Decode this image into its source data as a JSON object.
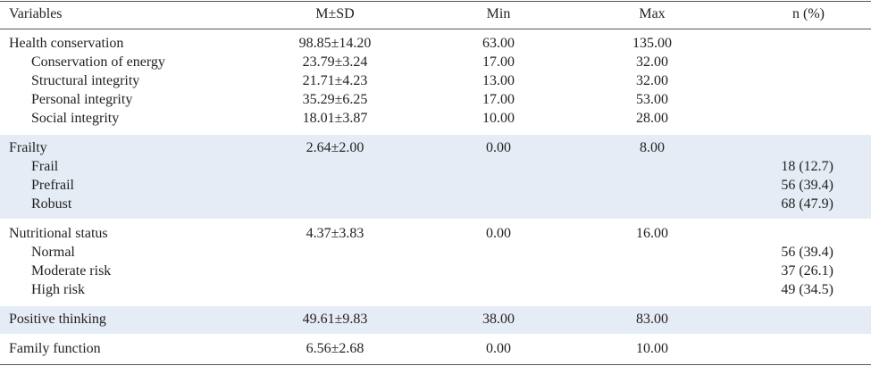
{
  "table": {
    "header": [
      "Variables",
      "M±SD",
      "Min",
      "Max",
      "n (%)"
    ],
    "groups": [
      {
        "rows": [
          {
            "label": "Health conservation",
            "msd": "98.85±14.20",
            "min": "63.00",
            "max": "135.00"
          },
          {
            "label": "Conservation of energy",
            "msd": "23.79±3.24",
            "min": "17.00",
            "max": "32.00",
            "sub": true
          },
          {
            "label": "Structural integrity",
            "msd": "21.71±4.23",
            "min": "13.00",
            "max": "32.00",
            "sub": true
          },
          {
            "label": "Personal integrity",
            "msd": "35.29±6.25",
            "min": "17.00",
            "max": "53.00",
            "sub": true
          },
          {
            "label": "Social integrity",
            "msd": "18.01±3.87",
            "min": "10.00",
            "max": "28.00",
            "sub": true
          }
        ]
      },
      {
        "shaded": true,
        "rows": [
          {
            "label": "Frailty",
            "msd": "2.64±2.00",
            "min": "0.00",
            "max": "8.00"
          },
          {
            "label": "Frail",
            "n": "18 (12.7)",
            "sub": true
          },
          {
            "label": "Prefrail",
            "n": "56 (39.4)",
            "sub": true
          },
          {
            "label": "Robust",
            "n": "68 (47.9)",
            "sub": true
          }
        ]
      },
      {
        "rows": [
          {
            "label": "Nutritional status",
            "msd": "4.37±3.83",
            "min": "0.00",
            "max": "16.00"
          },
          {
            "label": "Normal",
            "n": "56 (39.4)",
            "sub": true
          },
          {
            "label": "Moderate risk",
            "n": "37 (26.1)",
            "sub": true
          },
          {
            "label": "High risk",
            "n": "49 (34.5)",
            "sub": true
          }
        ]
      },
      {
        "shaded": true,
        "rows": [
          {
            "label": "Positive thinking",
            "msd": "49.61±9.83",
            "min": "38.00",
            "max": "83.00"
          }
        ]
      },
      {
        "rows": [
          {
            "label": "Family function",
            "msd": "6.56±2.68",
            "min": "0.00",
            "max": "10.00"
          }
        ]
      }
    ]
  }
}
